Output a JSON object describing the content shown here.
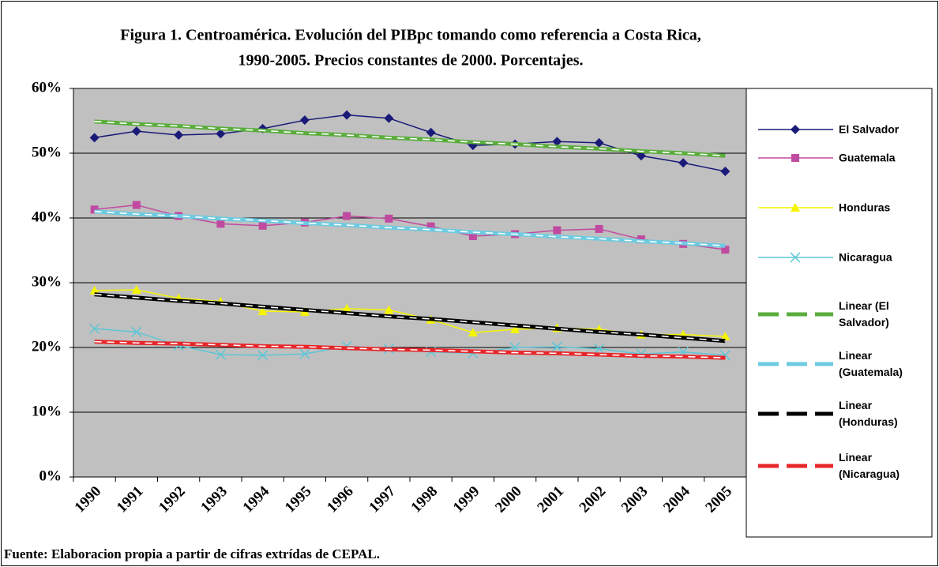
{
  "chart_data": {
    "type": "line",
    "title_lines": [
      "Figura 1. Centroamérica. Evolución del PIBpc tomando como referencia a Costa Rica,",
      "1990-2005. Precios constantes de 2000. Porcentajes."
    ],
    "source": "Fuente: Elaboracion propia a partir de cifras extrídas de CEPAL.",
    "categories": [
      "1990",
      "1991",
      "1992",
      "1993",
      "1994",
      "1995",
      "1996",
      "1997",
      "1998",
      "1999",
      "2000",
      "2001",
      "2002",
      "2003",
      "2004",
      "2005"
    ],
    "ylim": [
      0,
      60
    ],
    "yticks": [
      {
        "value": 0,
        "label": "0%"
      },
      {
        "value": 10,
        "label": "10%"
      },
      {
        "value": 20,
        "label": "20%"
      },
      {
        "value": 30,
        "label": "30%"
      },
      {
        "value": 40,
        "label": "40%"
      },
      {
        "value": 50,
        "label": "50%"
      },
      {
        "value": 60,
        "label": "60%"
      }
    ],
    "grid": true,
    "legend": "right",
    "series": [
      {
        "name": "El Salvador",
        "color": "#1a1a78",
        "marker": "diamond",
        "values": [
          52.4,
          53.4,
          52.8,
          53.0,
          53.8,
          55.1,
          55.9,
          55.4,
          53.2,
          51.2,
          51.4,
          51.8,
          51.6,
          49.6,
          48.5,
          47.2
        ]
      },
      {
        "name": "Guatemala",
        "color": "#c04aa0",
        "marker": "square",
        "values": [
          41.3,
          42.0,
          40.3,
          39.1,
          38.8,
          39.3,
          40.3,
          39.9,
          38.7,
          37.2,
          37.5,
          38.1,
          38.3,
          36.7,
          36.0,
          35.1
        ]
      },
      {
        "name": "Honduras",
        "color": "#f5f500",
        "marker": "triangle",
        "values": [
          28.8,
          28.9,
          27.6,
          27.1,
          25.6,
          25.5,
          26.0,
          25.8,
          24.3,
          22.3,
          22.8,
          23.0,
          22.8,
          22.0,
          22.0,
          21.7
        ]
      },
      {
        "name": "Nicaragua",
        "color": "#5cc6d6",
        "marker": "x",
        "values": [
          22.9,
          22.4,
          20.3,
          18.9,
          18.8,
          19.0,
          20.2,
          19.8,
          19.3,
          19.1,
          20.0,
          20.1,
          19.8,
          19.0,
          19.3,
          18.8
        ]
      },
      {
        "name": "Linear (El Salvador)",
        "color": "#5aad3c",
        "trendline": true,
        "values": [
          54.9,
          54.5,
          54.2,
          53.8,
          53.5,
          53.1,
          52.8,
          52.4,
          52.1,
          51.7,
          51.4,
          51.0,
          50.7,
          50.3,
          50.0,
          49.6
        ]
      },
      {
        "name": "Linear (Guatemala)",
        "color": "#6ccbe0",
        "trendline": true,
        "values": [
          41.0,
          40.6,
          40.3,
          39.9,
          39.6,
          39.2,
          38.9,
          38.5,
          38.2,
          37.8,
          37.5,
          37.1,
          36.8,
          36.4,
          36.1,
          35.7
        ]
      },
      {
        "name": "Linear (Honduras)",
        "color": "#000000",
        "trendline": true,
        "values": [
          28.2,
          27.7,
          27.2,
          26.8,
          26.3,
          25.8,
          25.3,
          24.8,
          24.4,
          23.9,
          23.4,
          22.9,
          22.4,
          22.0,
          21.5,
          21.0
        ]
      },
      {
        "name": "Linear (Nicaragua)",
        "color": "#e8262a",
        "trendline": true,
        "values": [
          20.9,
          20.7,
          20.6,
          20.4,
          20.2,
          20.1,
          19.9,
          19.7,
          19.6,
          19.4,
          19.2,
          19.1,
          18.9,
          18.7,
          18.6,
          18.4
        ]
      }
    ]
  }
}
